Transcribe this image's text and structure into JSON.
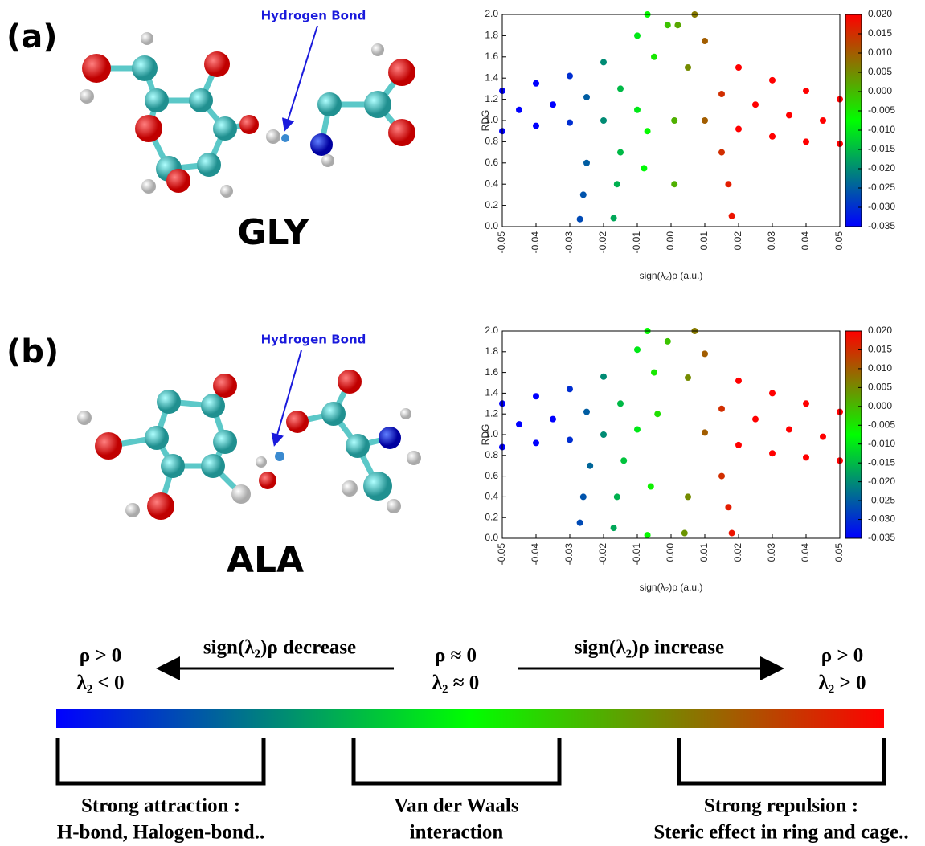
{
  "panels": [
    {
      "label": "(a)",
      "molecule": "GLY",
      "annotation": "Hydrogen Bond"
    },
    {
      "label": "(b)",
      "molecule": "ALA",
      "annotation": "Hydrogen Bond"
    }
  ],
  "chart_data": [
    {
      "type": "scatter",
      "x_label": "sign(λ₂)ρ (a.u.)",
      "y_label": "RDG",
      "x": [
        -0.05,
        -0.04,
        -0.03,
        -0.02,
        -0.01,
        -0.007,
        0.007,
        0.01,
        0.02,
        0.03,
        0.04,
        0.05,
        -0.05,
        -0.04,
        -0.03,
        -0.02,
        -0.01,
        0.01,
        0.02,
        0.03,
        0.04,
        0.05,
        -0.045,
        -0.035,
        -0.025,
        -0.015,
        -0.005,
        0.005,
        0.015,
        0.025,
        0.035,
        0.045,
        -0.027,
        -0.026,
        -0.025,
        -0.017,
        -0.016,
        -0.015,
        -0.008,
        -0.007,
        0.001,
        0.001,
        0.002,
        -0.001,
        0.018,
        0.017,
        0.015
      ],
      "y": [
        1.28,
        1.35,
        1.42,
        1.55,
        1.8,
        2.0,
        2.0,
        1.75,
        1.5,
        1.38,
        1.28,
        1.2,
        0.9,
        0.95,
        0.98,
        1.0,
        1.1,
        1.0,
        0.92,
        0.85,
        0.8,
        0.78,
        1.1,
        1.15,
        1.22,
        1.3,
        1.6,
        1.5,
        1.25,
        1.15,
        1.05,
        1.0,
        0.07,
        0.3,
        0.6,
        0.08,
        0.4,
        0.7,
        0.55,
        0.9,
        0.4,
        1.0,
        1.9,
        1.9,
        0.1,
        0.4,
        0.7
      ],
      "xlim": [
        -0.05,
        0.05
      ],
      "xticks": [
        {
          "value": -0.05,
          "label": "-0.05"
        },
        {
          "value": -0.04,
          "label": "-0.04"
        },
        {
          "value": -0.03,
          "label": "-0.03"
        },
        {
          "value": -0.02,
          "label": "-0.02"
        },
        {
          "value": -0.01,
          "label": "-0.01"
        },
        {
          "value": 0,
          "label": "0.00"
        },
        {
          "value": 0.01,
          "label": "0.01"
        },
        {
          "value": 0.02,
          "label": "0.02"
        },
        {
          "value": 0.03,
          "label": "0.03"
        },
        {
          "value": 0.04,
          "label": "0.04"
        },
        {
          "value": 0.05,
          "label": "0.05"
        }
      ],
      "ylim": [
        0,
        2
      ],
      "yticks": [
        {
          "value": 0,
          "label": "0.0"
        },
        {
          "value": 0.2,
          "label": "0.2"
        },
        {
          "value": 0.4,
          "label": "0.4"
        },
        {
          "value": 0.6,
          "label": "0.6"
        },
        {
          "value": 0.8,
          "label": "0.8"
        },
        {
          "value": 1,
          "label": "1.0"
        },
        {
          "value": 1.2,
          "label": "1.2"
        },
        {
          "value": 1.4,
          "label": "1.4"
        },
        {
          "value": 1.6,
          "label": "1.6"
        },
        {
          "value": 1.8,
          "label": "1.8"
        },
        {
          "value": 2,
          "label": "2.0"
        }
      ],
      "colorbar": {
        "lim": [
          -0.035,
          0.02
        ],
        "colors": [
          "#0000ff",
          "#00ff00",
          "#ff0000"
        ],
        "ticks": [
          {
            "value": 0.02,
            "label": "0.020"
          },
          {
            "value": 0.015,
            "label": "0.015"
          },
          {
            "value": 0.01,
            "label": "0.010"
          },
          {
            "value": 0.005,
            "label": "0.005"
          },
          {
            "value": 0,
            "label": "0.000"
          },
          {
            "value": -0.005,
            "label": "-0.005"
          },
          {
            "value": -0.01,
            "label": "-0.010"
          },
          {
            "value": -0.015,
            "label": "-0.015"
          },
          {
            "value": -0.02,
            "label": "-0.020"
          },
          {
            "value": -0.025,
            "label": "-0.025"
          },
          {
            "value": -0.03,
            "label": "-0.030"
          },
          {
            "value": -0.035,
            "label": "-0.035"
          }
        ]
      }
    },
    {
      "type": "scatter",
      "x_label": "sign(λ₂)ρ (a.u.)",
      "y_label": "RDG",
      "x": [
        -0.05,
        -0.04,
        -0.03,
        -0.02,
        -0.01,
        -0.007,
        0.007,
        0.01,
        0.02,
        0.03,
        0.04,
        0.05,
        -0.05,
        -0.04,
        -0.03,
        -0.02,
        -0.01,
        0.01,
        0.02,
        0.03,
        0.04,
        0.05,
        -0.045,
        -0.035,
        -0.025,
        -0.015,
        -0.005,
        0.005,
        0.015,
        0.025,
        0.035,
        0.045,
        -0.027,
        -0.026,
        -0.024,
        -0.017,
        -0.016,
        -0.014,
        -0.007,
        -0.006,
        -0.004,
        0.004,
        0.005,
        -0.001,
        0.018,
        0.017,
        0.015
      ],
      "y": [
        1.3,
        1.37,
        1.44,
        1.56,
        1.82,
        2.0,
        2.0,
        1.78,
        1.52,
        1.4,
        1.3,
        1.22,
        0.88,
        0.92,
        0.95,
        1.0,
        1.05,
        1.02,
        0.9,
        0.82,
        0.78,
        0.75,
        1.1,
        1.15,
        1.22,
        1.3,
        1.6,
        1.55,
        1.25,
        1.15,
        1.05,
        0.98,
        0.15,
        0.4,
        0.7,
        0.1,
        0.4,
        0.75,
        0.03,
        0.5,
        1.2,
        0.05,
        0.4,
        1.9,
        0.05,
        0.3,
        0.6
      ],
      "xlim": [
        -0.05,
        0.05
      ],
      "xticks": [
        {
          "value": -0.05,
          "label": "-0.05"
        },
        {
          "value": -0.04,
          "label": "-0.04"
        },
        {
          "value": -0.03,
          "label": "-0.03"
        },
        {
          "value": -0.02,
          "label": "-0.02"
        },
        {
          "value": -0.01,
          "label": "-0.01"
        },
        {
          "value": 0,
          "label": "0.00"
        },
        {
          "value": 0.01,
          "label": "0.01"
        },
        {
          "value": 0.02,
          "label": "0.02"
        },
        {
          "value": 0.03,
          "label": "0.03"
        },
        {
          "value": 0.04,
          "label": "0.04"
        },
        {
          "value": 0.05,
          "label": "0.05"
        }
      ],
      "ylim": [
        0,
        2
      ],
      "yticks": [
        {
          "value": 0,
          "label": "0.0"
        },
        {
          "value": 0.2,
          "label": "0.2"
        },
        {
          "value": 0.4,
          "label": "0.4"
        },
        {
          "value": 0.6,
          "label": "0.6"
        },
        {
          "value": 0.8,
          "label": "0.8"
        },
        {
          "value": 1,
          "label": "1.0"
        },
        {
          "value": 1.2,
          "label": "1.2"
        },
        {
          "value": 1.4,
          "label": "1.4"
        },
        {
          "value": 1.6,
          "label": "1.6"
        },
        {
          "value": 1.8,
          "label": "1.8"
        },
        {
          "value": 2,
          "label": "2.0"
        }
      ],
      "colorbar": {
        "lim": [
          -0.035,
          0.02
        ],
        "colors": [
          "#0000ff",
          "#00ff00",
          "#ff0000"
        ],
        "ticks": [
          {
            "value": 0.02,
            "label": "0.020"
          },
          {
            "value": 0.015,
            "label": "0.015"
          },
          {
            "value": 0.01,
            "label": "0.010"
          },
          {
            "value": 0.005,
            "label": "0.005"
          },
          {
            "value": 0,
            "label": "0.000"
          },
          {
            "value": -0.005,
            "label": "-0.005"
          },
          {
            "value": -0.01,
            "label": "-0.010"
          },
          {
            "value": -0.015,
            "label": "-0.015"
          },
          {
            "value": -0.02,
            "label": "-0.020"
          },
          {
            "value": -0.025,
            "label": "-0.025"
          },
          {
            "value": -0.03,
            "label": "-0.030"
          },
          {
            "value": -0.035,
            "label": "-0.035"
          }
        ]
      }
    }
  ],
  "scale": {
    "left": [
      "ρ > 0",
      "λ₂ < 0"
    ],
    "center": [
      "ρ ≈ 0",
      "λ₂ ≈ 0"
    ],
    "right": [
      "ρ > 0",
      "λ₂ > 0"
    ],
    "decrease": "sign(λ₂)ρ decrease",
    "increase": "sign(λ₂)ρ increase",
    "captions": [
      [
        "Strong attraction :",
        "H-bond, Halogen-bond.."
      ],
      [
        "Van der Waals",
        "interaction"
      ],
      [
        "Strong repulsion :",
        "Steric effect in ring and cage.."
      ]
    ]
  }
}
